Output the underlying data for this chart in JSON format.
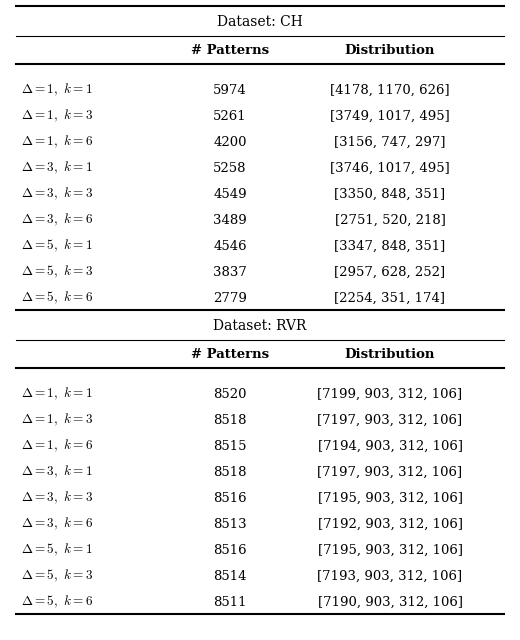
{
  "ch_title": "Dataset: CH",
  "rvr_title": "Dataset: RVR",
  "col_headers": [
    "",
    "# Patterns",
    "Distribution"
  ],
  "ch_rows": [
    [
      "$\\Delta = 1,\\ k = 1$",
      "5974",
      "[4178, 1170, 626]"
    ],
    [
      "$\\Delta = 1,\\ k = 3$",
      "5261",
      "[3749, 1017, 495]"
    ],
    [
      "$\\Delta = 1,\\ k = 6$",
      "4200",
      "[3156, 747, 297]"
    ],
    [
      "$\\Delta = 3,\\ k = 1$",
      "5258",
      "[3746, 1017, 495]"
    ],
    [
      "$\\Delta = 3,\\ k = 3$",
      "4549",
      "[3350, 848, 351]"
    ],
    [
      "$\\Delta = 3,\\ k = 6$",
      "3489",
      "[2751, 520, 218]"
    ],
    [
      "$\\Delta = 5,\\ k = 1$",
      "4546",
      "[3347, 848, 351]"
    ],
    [
      "$\\Delta = 5,\\ k = 3$",
      "3837",
      "[2957, 628, 252]"
    ],
    [
      "$\\Delta = 5,\\ k = 6$",
      "2779",
      "[2254, 351, 174]"
    ]
  ],
  "rvr_rows": [
    [
      "$\\Delta = 1,\\ k = 1$",
      "8520",
      "[7199, 903, 312, 106]"
    ],
    [
      "$\\Delta = 1,\\ k = 3$",
      "8518",
      "[7197, 903, 312, 106]"
    ],
    [
      "$\\Delta = 1,\\ k = 6$",
      "8515",
      "[7194, 903, 312, 106]"
    ],
    [
      "$\\Delta = 3,\\ k = 1$",
      "8518",
      "[7197, 903, 312, 106]"
    ],
    [
      "$\\Delta = 3,\\ k = 3$",
      "8516",
      "[7195, 903, 312, 106]"
    ],
    [
      "$\\Delta = 3,\\ k = 6$",
      "8513",
      "[7192, 903, 312, 106]"
    ],
    [
      "$\\Delta = 5,\\ k = 1$",
      "8516",
      "[7195, 903, 312, 106]"
    ],
    [
      "$\\Delta = 5,\\ k = 3$",
      "8514",
      "[7193, 903, 312, 106]"
    ],
    [
      "$\\Delta = 5,\\ k = 6$",
      "8511",
      "[7190, 903, 312, 106]"
    ]
  ],
  "bg_color": "white",
  "line_color": "black",
  "font_size": 9.5,
  "header_font_size": 9.5,
  "title_font_size": 10.0
}
